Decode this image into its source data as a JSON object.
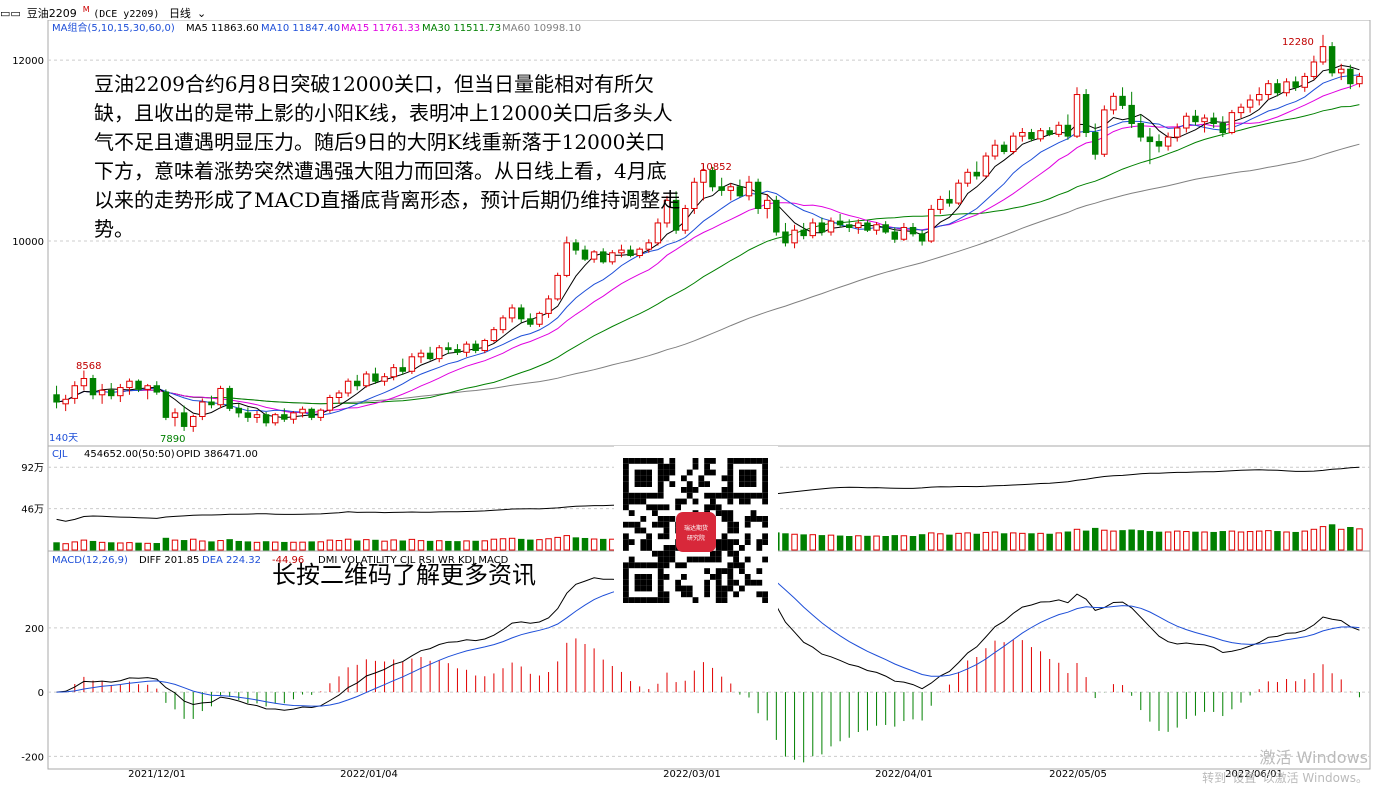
{
  "topbar": {
    "icon": "window-icon",
    "symbol": "豆油2209",
    "symbol_sup": "M",
    "exchange": "(DCE y2209)",
    "period_label": "日线",
    "period_icon": "chevron-down-icon"
  },
  "ma_legend": {
    "group_label": "MA组合(5,10,15,30,60,0)",
    "items": [
      {
        "label": "MA5 11863.60",
        "color": "#000000"
      },
      {
        "label": "MA10 11847.40",
        "color": "#1e4fd8"
      },
      {
        "label": "MA15 11761.33",
        "color": "#e000e0"
      },
      {
        "label": "MA30 11511.73",
        "color": "#008000"
      },
      {
        "label": "MA60 10998.10",
        "color": "#808080"
      }
    ]
  },
  "annotation": "豆油2209合约6月8日突破12000关口，但当日量能相对有所欠缺，且收出的是带上影的小阳K线，表明冲上12000关口后多头人气不足且遭遇明显压力。随后9日的大阴K线重新落于12000关口下方，意味着涨势突然遭遇强大阻力而回落。从日线上看，4月底以来的走势形成了MACD直播底背离形态，预计后期仍维持调整走势。",
  "qr_caption": "长按二维码了解更多资讯",
  "qr_logo_text": [
    "瑞达期货",
    "研究院"
  ],
  "watermark": [
    "激活 Windows",
    "转到“设置”以激活 Windows。"
  ],
  "price_panel": {
    "y_ticks": [
      "12000",
      "10000"
    ],
    "marks": {
      "high1": "8568",
      "low1": "7890",
      "high2": "10852",
      "high3": "12280"
    },
    "day_count": "140天"
  },
  "vol_panel": {
    "legend": "CJL",
    "values": "454652.00(50:50)",
    "opi": "OPID 386471.00",
    "y_ticks": [
      "92万",
      "46万"
    ]
  },
  "macd_panel": {
    "legend": "MACD(12,26,9)",
    "diff": "DIFF 201.85",
    "dea": "DEA 224.32",
    "macd": "-44.96",
    "tabs": "DMI VOLATILITY CJL RSI WR KDJ MACD",
    "y_ticks": [
      "200",
      "0",
      "-200"
    ]
  },
  "x_labels": [
    "2021/12/01",
    "2022/01/04",
    "2022/03/01",
    "2022/04/01",
    "2022/05/05",
    "2022/06/01"
  ],
  "chart_data": {
    "type": "candlestick",
    "contract": "豆油2209",
    "price_range": [
      7800,
      12400
    ],
    "volume_range": [
      0,
      1000000
    ],
    "macd_range": [
      -230,
      380
    ],
    "days": [
      {
        "o": 8300,
        "h": 8400,
        "l": 8150,
        "c": 8220,
        "v": 80000
      },
      {
        "o": 8200,
        "h": 8300,
        "l": 8120,
        "c": 8250,
        "v": 70000
      },
      {
        "o": 8260,
        "h": 8450,
        "l": 8200,
        "c": 8400,
        "v": 90000
      },
      {
        "o": 8400,
        "h": 8568,
        "l": 8350,
        "c": 8480,
        "v": 110000
      },
      {
        "o": 8480,
        "h": 8520,
        "l": 8250,
        "c": 8300,
        "v": 95000
      },
      {
        "o": 8300,
        "h": 8420,
        "l": 8200,
        "c": 8350,
        "v": 85000
      },
      {
        "o": 8350,
        "h": 8430,
        "l": 8250,
        "c": 8290,
        "v": 80000
      },
      {
        "o": 8290,
        "h": 8420,
        "l": 8220,
        "c": 8380,
        "v": 78000
      },
      {
        "o": 8380,
        "h": 8480,
        "l": 8300,
        "c": 8450,
        "v": 82000
      },
      {
        "o": 8450,
        "h": 8470,
        "l": 8330,
        "c": 8360,
        "v": 76000
      },
      {
        "o": 8360,
        "h": 8420,
        "l": 8250,
        "c": 8400,
        "v": 74000
      },
      {
        "o": 8400,
        "h": 8450,
        "l": 8300,
        "c": 8330,
        "v": 72000
      },
      {
        "o": 8330,
        "h": 8360,
        "l": 8020,
        "c": 8050,
        "v": 130000
      },
      {
        "o": 8050,
        "h": 8150,
        "l": 7950,
        "c": 8100,
        "v": 110000
      },
      {
        "o": 8100,
        "h": 8180,
        "l": 7900,
        "c": 7950,
        "v": 105000
      },
      {
        "o": 7950,
        "h": 8080,
        "l": 7890,
        "c": 8060,
        "v": 120000
      },
      {
        "o": 8060,
        "h": 8260,
        "l": 8020,
        "c": 8220,
        "v": 100000
      },
      {
        "o": 8220,
        "h": 8290,
        "l": 8150,
        "c": 8190,
        "v": 90000
      },
      {
        "o": 8190,
        "h": 8400,
        "l": 8150,
        "c": 8370,
        "v": 105000
      },
      {
        "o": 8370,
        "h": 8400,
        "l": 8120,
        "c": 8150,
        "v": 115000
      },
      {
        "o": 8150,
        "h": 8200,
        "l": 8050,
        "c": 8100,
        "v": 95000
      },
      {
        "o": 8100,
        "h": 8160,
        "l": 8000,
        "c": 8050,
        "v": 90000
      },
      {
        "o": 8050,
        "h": 8120,
        "l": 7990,
        "c": 8080,
        "v": 85000
      },
      {
        "o": 8080,
        "h": 8110,
        "l": 7950,
        "c": 7990,
        "v": 92000
      },
      {
        "o": 7990,
        "h": 8100,
        "l": 7960,
        "c": 8080,
        "v": 88000
      },
      {
        "o": 8080,
        "h": 8150,
        "l": 8000,
        "c": 8030,
        "v": 84000
      },
      {
        "o": 8030,
        "h": 8120,
        "l": 7980,
        "c": 8100,
        "v": 86000
      },
      {
        "o": 8100,
        "h": 8170,
        "l": 8050,
        "c": 8140,
        "v": 87000
      },
      {
        "o": 8140,
        "h": 8160,
        "l": 8020,
        "c": 8050,
        "v": 90000
      },
      {
        "o": 8050,
        "h": 8150,
        "l": 8010,
        "c": 8130,
        "v": 91000
      },
      {
        "o": 8130,
        "h": 8300,
        "l": 8100,
        "c": 8270,
        "v": 110000
      },
      {
        "o": 8270,
        "h": 8350,
        "l": 8200,
        "c": 8320,
        "v": 105000
      },
      {
        "o": 8320,
        "h": 8480,
        "l": 8280,
        "c": 8450,
        "v": 120000
      },
      {
        "o": 8450,
        "h": 8520,
        "l": 8350,
        "c": 8400,
        "v": 100000
      },
      {
        "o": 8400,
        "h": 8560,
        "l": 8380,
        "c": 8530,
        "v": 115000
      },
      {
        "o": 8530,
        "h": 8600,
        "l": 8420,
        "c": 8450,
        "v": 108000
      },
      {
        "o": 8450,
        "h": 8540,
        "l": 8400,
        "c": 8500,
        "v": 98000
      },
      {
        "o": 8500,
        "h": 8640,
        "l": 8460,
        "c": 8600,
        "v": 112000
      },
      {
        "o": 8600,
        "h": 8700,
        "l": 8520,
        "c": 8560,
        "v": 100000
      },
      {
        "o": 8560,
        "h": 8760,
        "l": 8530,
        "c": 8720,
        "v": 118000
      },
      {
        "o": 8720,
        "h": 8800,
        "l": 8650,
        "c": 8760,
        "v": 104000
      },
      {
        "o": 8760,
        "h": 8830,
        "l": 8680,
        "c": 8700,
        "v": 96000
      },
      {
        "o": 8700,
        "h": 8850,
        "l": 8660,
        "c": 8820,
        "v": 103000
      },
      {
        "o": 8820,
        "h": 8880,
        "l": 8750,
        "c": 8800,
        "v": 95000
      },
      {
        "o": 8800,
        "h": 8860,
        "l": 8740,
        "c": 8770,
        "v": 93000
      },
      {
        "o": 8770,
        "h": 8890,
        "l": 8720,
        "c": 8860,
        "v": 101000
      },
      {
        "o": 8860,
        "h": 8900,
        "l": 8760,
        "c": 8790,
        "v": 97000
      },
      {
        "o": 8790,
        "h": 8920,
        "l": 8760,
        "c": 8900,
        "v": 102000
      },
      {
        "o": 8900,
        "h": 9050,
        "l": 8880,
        "c": 9020,
        "v": 120000
      },
      {
        "o": 9020,
        "h": 9180,
        "l": 8980,
        "c": 9150,
        "v": 125000
      },
      {
        "o": 9150,
        "h": 9300,
        "l": 9100,
        "c": 9260,
        "v": 130000
      },
      {
        "o": 9260,
        "h": 9300,
        "l": 9100,
        "c": 9140,
        "v": 118000
      },
      {
        "o": 9140,
        "h": 9200,
        "l": 9050,
        "c": 9080,
        "v": 110000
      },
      {
        "o": 9080,
        "h": 9220,
        "l": 9050,
        "c": 9200,
        "v": 115000
      },
      {
        "o": 9200,
        "h": 9400,
        "l": 9150,
        "c": 9360,
        "v": 125000
      },
      {
        "o": 9360,
        "h": 9650,
        "l": 9340,
        "c": 9620,
        "v": 140000
      },
      {
        "o": 9620,
        "h": 10050,
        "l": 9600,
        "c": 9980,
        "v": 160000
      },
      {
        "o": 9980,
        "h": 10020,
        "l": 9850,
        "c": 9900,
        "v": 135000
      },
      {
        "o": 9900,
        "h": 9950,
        "l": 9780,
        "c": 9800,
        "v": 128000
      },
      {
        "o": 9800,
        "h": 9900,
        "l": 9760,
        "c": 9880,
        "v": 122000
      },
      {
        "o": 9880,
        "h": 9920,
        "l": 9750,
        "c": 9770,
        "v": 118000
      },
      {
        "o": 9770,
        "h": 9900,
        "l": 9740,
        "c": 9870,
        "v": 120000
      },
      {
        "o": 9870,
        "h": 9960,
        "l": 9820,
        "c": 9900,
        "v": 115000
      },
      {
        "o": 9900,
        "h": 9950,
        "l": 9820,
        "c": 9840,
        "v": 112000
      },
      {
        "o": 9840,
        "h": 9930,
        "l": 9810,
        "c": 9910,
        "v": 117000
      },
      {
        "o": 9910,
        "h": 10020,
        "l": 9870,
        "c": 9980,
        "v": 125000
      },
      {
        "o": 9980,
        "h": 10250,
        "l": 9950,
        "c": 10200,
        "v": 140000
      },
      {
        "o": 10200,
        "h": 10500,
        "l": 10150,
        "c": 10450,
        "v": 160000
      },
      {
        "o": 10450,
        "h": 10550,
        "l": 10080,
        "c": 10120,
        "v": 170000
      },
      {
        "o": 10120,
        "h": 10400,
        "l": 10080,
        "c": 10360,
        "v": 150000
      },
      {
        "o": 10360,
        "h": 10700,
        "l": 10300,
        "c": 10650,
        "v": 170000
      },
      {
        "o": 10650,
        "h": 10852,
        "l": 10450,
        "c": 10780,
        "v": 180000
      },
      {
        "o": 10780,
        "h": 10820,
        "l": 10550,
        "c": 10600,
        "v": 165000
      },
      {
        "o": 10600,
        "h": 10700,
        "l": 10500,
        "c": 10560,
        "v": 150000
      },
      {
        "o": 10560,
        "h": 10640,
        "l": 10450,
        "c": 10600,
        "v": 140000
      },
      {
        "o": 10600,
        "h": 10680,
        "l": 10480,
        "c": 10500,
        "v": 145000
      },
      {
        "o": 10500,
        "h": 10720,
        "l": 10450,
        "c": 10650,
        "v": 160000
      },
      {
        "o": 10650,
        "h": 10690,
        "l": 10300,
        "c": 10360,
        "v": 175000
      },
      {
        "o": 10360,
        "h": 10520,
        "l": 10250,
        "c": 10450,
        "v": 165000
      },
      {
        "o": 10450,
        "h": 10500,
        "l": 10060,
        "c": 10100,
        "v": 190000
      },
      {
        "o": 10100,
        "h": 10200,
        "l": 9940,
        "c": 9980,
        "v": 180000
      },
      {
        "o": 9980,
        "h": 10180,
        "l": 9920,
        "c": 10120,
        "v": 175000
      },
      {
        "o": 10120,
        "h": 10200,
        "l": 10020,
        "c": 10060,
        "v": 168000
      },
      {
        "o": 10060,
        "h": 10250,
        "l": 10030,
        "c": 10200,
        "v": 170000
      },
      {
        "o": 10200,
        "h": 10260,
        "l": 10060,
        "c": 10100,
        "v": 160000
      },
      {
        "o": 10100,
        "h": 10260,
        "l": 10060,
        "c": 10220,
        "v": 165000
      },
      {
        "o": 10220,
        "h": 10300,
        "l": 10150,
        "c": 10180,
        "v": 155000
      },
      {
        "o": 10180,
        "h": 10240,
        "l": 10100,
        "c": 10150,
        "v": 150000
      },
      {
        "o": 10150,
        "h": 10240,
        "l": 10080,
        "c": 10200,
        "v": 158000
      },
      {
        "o": 10200,
        "h": 10230,
        "l": 10100,
        "c": 10120,
        "v": 152000
      },
      {
        "o": 10120,
        "h": 10210,
        "l": 10070,
        "c": 10180,
        "v": 155000
      },
      {
        "o": 10180,
        "h": 10220,
        "l": 10080,
        "c": 10100,
        "v": 150000
      },
      {
        "o": 10100,
        "h": 10150,
        "l": 9980,
        "c": 10020,
        "v": 160000
      },
      {
        "o": 10020,
        "h": 10200,
        "l": 10000,
        "c": 10150,
        "v": 158000
      },
      {
        "o": 10150,
        "h": 10200,
        "l": 10050,
        "c": 10080,
        "v": 150000
      },
      {
        "o": 10080,
        "h": 10120,
        "l": 9950,
        "c": 10000,
        "v": 170000
      },
      {
        "o": 10000,
        "h": 10400,
        "l": 9980,
        "c": 10350,
        "v": 190000
      },
      {
        "o": 10350,
        "h": 10500,
        "l": 10300,
        "c": 10460,
        "v": 180000
      },
      {
        "o": 10460,
        "h": 10560,
        "l": 10380,
        "c": 10420,
        "v": 165000
      },
      {
        "o": 10420,
        "h": 10680,
        "l": 10400,
        "c": 10640,
        "v": 185000
      },
      {
        "o": 10640,
        "h": 10800,
        "l": 10600,
        "c": 10760,
        "v": 190000
      },
      {
        "o": 10760,
        "h": 10880,
        "l": 10680,
        "c": 10720,
        "v": 175000
      },
      {
        "o": 10720,
        "h": 10980,
        "l": 10700,
        "c": 10940,
        "v": 195000
      },
      {
        "o": 10940,
        "h": 11120,
        "l": 10900,
        "c": 11060,
        "v": 200000
      },
      {
        "o": 11060,
        "h": 11100,
        "l": 10960,
        "c": 10990,
        "v": 180000
      },
      {
        "o": 10990,
        "h": 11200,
        "l": 10960,
        "c": 11160,
        "v": 190000
      },
      {
        "o": 11160,
        "h": 11250,
        "l": 11100,
        "c": 11200,
        "v": 185000
      },
      {
        "o": 11200,
        "h": 11240,
        "l": 11100,
        "c": 11130,
        "v": 180000
      },
      {
        "o": 11130,
        "h": 11250,
        "l": 11100,
        "c": 11220,
        "v": 185000
      },
      {
        "o": 11220,
        "h": 11260,
        "l": 11160,
        "c": 11180,
        "v": 175000
      },
      {
        "o": 11180,
        "h": 11320,
        "l": 11150,
        "c": 11280,
        "v": 190000
      },
      {
        "o": 11280,
        "h": 11400,
        "l": 11120,
        "c": 11160,
        "v": 200000
      },
      {
        "o": 11160,
        "h": 11700,
        "l": 11140,
        "c": 11620,
        "v": 230000
      },
      {
        "o": 11620,
        "h": 11680,
        "l": 11150,
        "c": 11200,
        "v": 210000
      },
      {
        "o": 11200,
        "h": 11300,
        "l": 10900,
        "c": 10960,
        "v": 240000
      },
      {
        "o": 10960,
        "h": 11500,
        "l": 10930,
        "c": 11450,
        "v": 220000
      },
      {
        "o": 11450,
        "h": 11640,
        "l": 11400,
        "c": 11600,
        "v": 210000
      },
      {
        "o": 11600,
        "h": 11700,
        "l": 11460,
        "c": 11500,
        "v": 215000
      },
      {
        "o": 11500,
        "h": 11650,
        "l": 11250,
        "c": 11300,
        "v": 222000
      },
      {
        "o": 11300,
        "h": 11400,
        "l": 11100,
        "c": 11150,
        "v": 215000
      },
      {
        "o": 11150,
        "h": 11250,
        "l": 10850,
        "c": 11100,
        "v": 205000
      },
      {
        "o": 11100,
        "h": 11180,
        "l": 10980,
        "c": 11050,
        "v": 198000
      },
      {
        "o": 11050,
        "h": 11200,
        "l": 11000,
        "c": 11150,
        "v": 200000
      },
      {
        "o": 11150,
        "h": 11300,
        "l": 11100,
        "c": 11250,
        "v": 210000
      },
      {
        "o": 11250,
        "h": 11420,
        "l": 11200,
        "c": 11380,
        "v": 205000
      },
      {
        "o": 11380,
        "h": 11450,
        "l": 11280,
        "c": 11320,
        "v": 198000
      },
      {
        "o": 11320,
        "h": 11400,
        "l": 11200,
        "c": 11360,
        "v": 200000
      },
      {
        "o": 11360,
        "h": 11420,
        "l": 11250,
        "c": 11300,
        "v": 195000
      },
      {
        "o": 11300,
        "h": 11380,
        "l": 11150,
        "c": 11200,
        "v": 205000
      },
      {
        "o": 11200,
        "h": 11450,
        "l": 11180,
        "c": 11420,
        "v": 210000
      },
      {
        "o": 11420,
        "h": 11520,
        "l": 11360,
        "c": 11480,
        "v": 200000
      },
      {
        "o": 11480,
        "h": 11620,
        "l": 11420,
        "c": 11560,
        "v": 205000
      },
      {
        "o": 11560,
        "h": 11700,
        "l": 11500,
        "c": 11620,
        "v": 210000
      },
      {
        "o": 11620,
        "h": 11780,
        "l": 11560,
        "c": 11740,
        "v": 215000
      },
      {
        "o": 11740,
        "h": 11790,
        "l": 11600,
        "c": 11640,
        "v": 205000
      },
      {
        "o": 11640,
        "h": 11800,
        "l": 11600,
        "c": 11760,
        "v": 200000
      },
      {
        "o": 11760,
        "h": 11820,
        "l": 11660,
        "c": 11700,
        "v": 195000
      },
      {
        "o": 11700,
        "h": 11860,
        "l": 11650,
        "c": 11820,
        "v": 210000
      },
      {
        "o": 11820,
        "h": 12050,
        "l": 11780,
        "c": 11980,
        "v": 230000
      },
      {
        "o": 11980,
        "h": 12280,
        "l": 11950,
        "c": 12150,
        "v": 260000
      },
      {
        "o": 12150,
        "h": 12200,
        "l": 11820,
        "c": 11860,
        "v": 280000
      },
      {
        "o": 11860,
        "h": 11960,
        "l": 11780,
        "c": 11900,
        "v": 230000
      },
      {
        "o": 11900,
        "h": 11950,
        "l": 11680,
        "c": 11740,
        "v": 250000
      },
      {
        "o": 11740,
        "h": 11860,
        "l": 11700,
        "c": 11820,
        "v": 235000
      }
    ]
  }
}
